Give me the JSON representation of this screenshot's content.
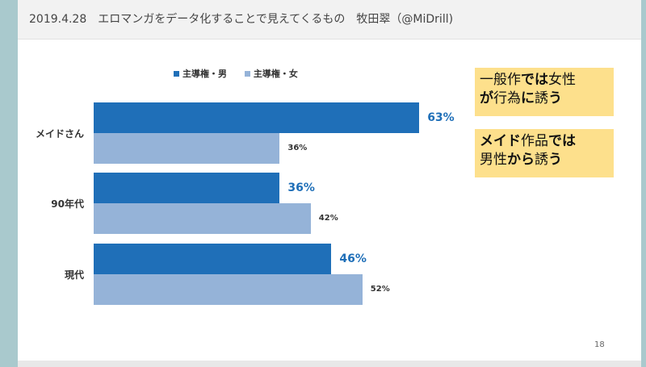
{
  "header": {
    "title": "2019.4.28　エロマンガをデータ化することで見えてくるもの　牧田翠（@MiDrill)"
  },
  "callouts": {
    "box1": {
      "line1_a": "一般作",
      "line1_b": "では",
      "line1_c": "女性",
      "line2_a": "が",
      "line2_b": "行為",
      "line2_c": "に",
      "line2_d": "誘",
      "line2_e": "う"
    },
    "box2": {
      "line1_a": "メイド",
      "line1_b": "作品",
      "line1_c": "では",
      "line2_a": "男性",
      "line2_b": "から",
      "line2_c": "誘",
      "line2_d": "う"
    }
  },
  "page_number": "18",
  "colors": {
    "male": "#1f6fb8",
    "female": "#95b3d8",
    "callout_bg": "#fde08c"
  },
  "chart_data": {
    "type": "bar",
    "orientation": "horizontal",
    "categories": [
      "メイドさん",
      "90年代",
      "現代"
    ],
    "series": [
      {
        "name": "主導権・男",
        "values": [
          63,
          36,
          46
        ],
        "labels": [
          "63%",
          "36%",
          "46%"
        ]
      },
      {
        "name": "主導権・女",
        "values": [
          36,
          42,
          52
        ],
        "labels": [
          "36%",
          "42%",
          "52%"
        ]
      }
    ],
    "xlim": [
      0,
      100
    ],
    "legend_position": "top",
    "grid": false
  }
}
